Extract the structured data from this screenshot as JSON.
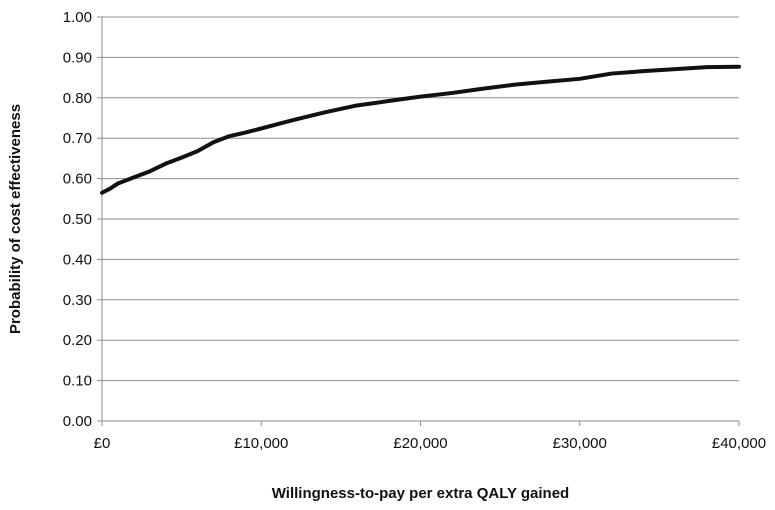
{
  "chart_data": {
    "type": "line",
    "title": "",
    "xlabel": "Willingness-to-pay  per extra QALY gained",
    "ylabel": "Probability of cost effectiveness",
    "xlim": [
      0,
      40000
    ],
    "ylim": [
      0,
      1
    ],
    "grid": "horizontal",
    "legend": "none",
    "x_ticks": [
      0,
      10000,
      20000,
      30000,
      40000
    ],
    "x_tick_labels": [
      "£0",
      "£10,000",
      "£20,000",
      "£30,000",
      "£40,000"
    ],
    "y_ticks": [
      0,
      0.1,
      0.2,
      0.3,
      0.4,
      0.5,
      0.6,
      0.7,
      0.8,
      0.9,
      1.0
    ],
    "y_tick_labels": [
      "0.00",
      "0.10",
      "0.20",
      "0.30",
      "0.40",
      "0.50",
      "0.60",
      "0.70",
      "0.80",
      "0.90",
      "1.00"
    ],
    "series": [
      {
        "color": "#111111",
        "x": [
          0,
          500,
          1000,
          2000,
          3000,
          4000,
          5000,
          6000,
          7000,
          8000,
          9000,
          10000,
          12000,
          14000,
          16000,
          18000,
          20000,
          22000,
          24000,
          26000,
          28000,
          30000,
          32000,
          34000,
          36000,
          38000,
          40000
        ],
        "y": [
          0.565,
          0.575,
          0.588,
          0.603,
          0.618,
          0.637,
          0.652,
          0.668,
          0.69,
          0.705,
          0.714,
          0.724,
          0.745,
          0.764,
          0.781,
          0.792,
          0.803,
          0.812,
          0.823,
          0.833,
          0.84,
          0.847,
          0.86,
          0.866,
          0.871,
          0.876,
          0.877
        ]
      }
    ]
  }
}
